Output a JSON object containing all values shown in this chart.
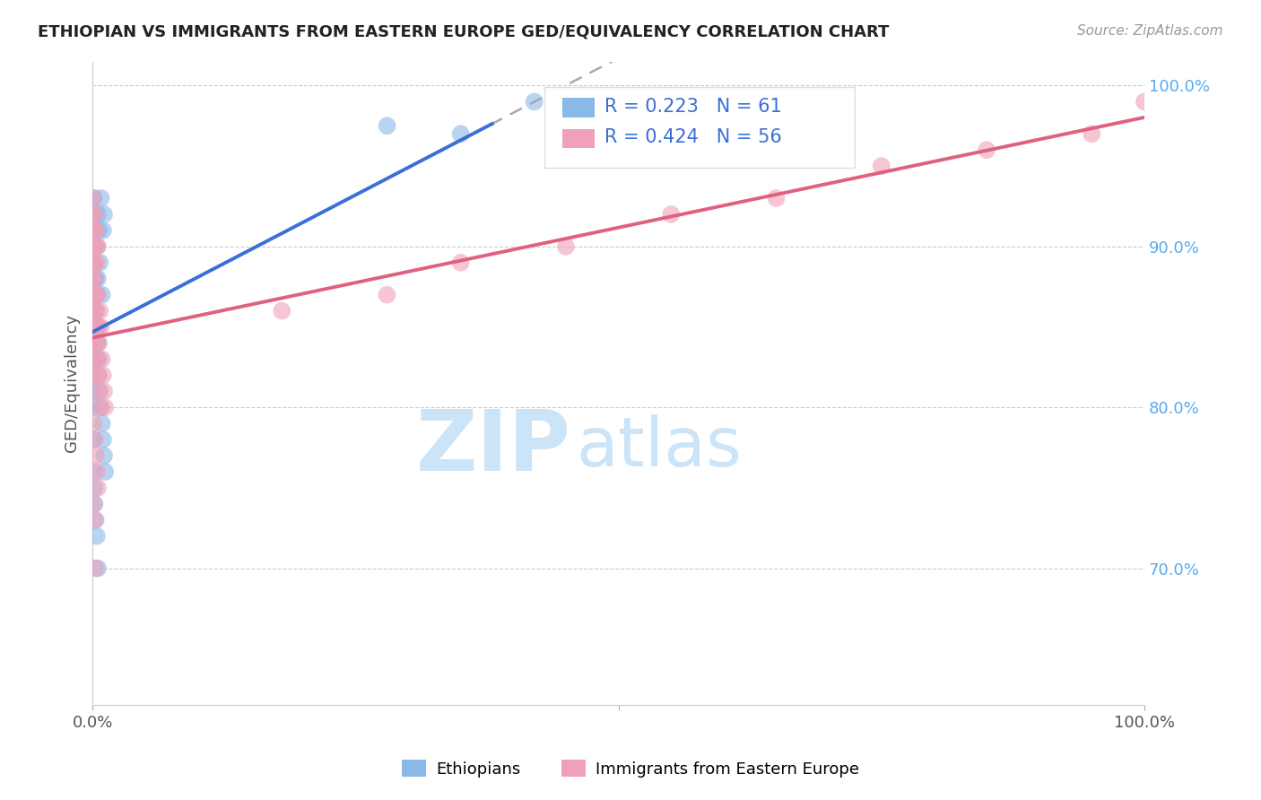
{
  "title": "ETHIOPIAN VS IMMIGRANTS FROM EASTERN EUROPE GED/EQUIVALENCY CORRELATION CHART",
  "source": "Source: ZipAtlas.com",
  "ylabel": "GED/Equivalency",
  "legend_blue_R": "R = 0.223",
  "legend_blue_N": "N = 61",
  "legend_pink_R": "R = 0.424",
  "legend_pink_N": "N = 56",
  "legend_blue_label": "Ethiopians",
  "legend_pink_label": "Immigrants from Eastern Europe",
  "blue_scatter_x": [
    0.001,
    0.001,
    0.001,
    0.001,
    0.001,
    0.001,
    0.001,
    0.001,
    0.001,
    0.001,
    0.002,
    0.002,
    0.002,
    0.002,
    0.002,
    0.002,
    0.002,
    0.003,
    0.003,
    0.003,
    0.004,
    0.004,
    0.005,
    0.005,
    0.006,
    0.007,
    0.008,
    0.009,
    0.01,
    0.011,
    0.001,
    0.001,
    0.001,
    0.001,
    0.002,
    0.002,
    0.003,
    0.003,
    0.004,
    0.004,
    0.005,
    0.005,
    0.006,
    0.006,
    0.007,
    0.008,
    0.009,
    0.01,
    0.011,
    0.012,
    0.001,
    0.001,
    0.002,
    0.002,
    0.003,
    0.004,
    0.005,
    0.28,
    0.35,
    0.42,
    0.45
  ],
  "blue_scatter_y": [
    0.93,
    0.92,
    0.91,
    0.9,
    0.89,
    0.88,
    0.87,
    0.86,
    0.85,
    0.84,
    0.92,
    0.91,
    0.9,
    0.89,
    0.88,
    0.87,
    0.86,
    0.91,
    0.9,
    0.88,
    0.9,
    0.87,
    0.92,
    0.88,
    0.91,
    0.89,
    0.93,
    0.87,
    0.91,
    0.92,
    0.83,
    0.82,
    0.81,
    0.8,
    0.85,
    0.84,
    0.86,
    0.85,
    0.84,
    0.83,
    0.85,
    0.84,
    0.83,
    0.82,
    0.81,
    0.8,
    0.79,
    0.78,
    0.77,
    0.76,
    0.78,
    0.76,
    0.75,
    0.74,
    0.73,
    0.72,
    0.7,
    0.975,
    0.97,
    0.99,
    0.98
  ],
  "pink_scatter_x": [
    0.001,
    0.001,
    0.001,
    0.001,
    0.001,
    0.001,
    0.001,
    0.002,
    0.002,
    0.002,
    0.002,
    0.002,
    0.002,
    0.003,
    0.003,
    0.003,
    0.004,
    0.004,
    0.005,
    0.005,
    0.006,
    0.006,
    0.007,
    0.008,
    0.009,
    0.01,
    0.011,
    0.012,
    0.001,
    0.001,
    0.002,
    0.002,
    0.003,
    0.003,
    0.004,
    0.005,
    0.006,
    0.007,
    0.001,
    0.002,
    0.003,
    0.004,
    0.005,
    0.001,
    0.002,
    0.003,
    0.18,
    0.28,
    0.35,
    0.45,
    0.55,
    0.65,
    0.75,
    0.85,
    0.95,
    1.0
  ],
  "pink_scatter_y": [
    0.93,
    0.92,
    0.91,
    0.9,
    0.89,
    0.88,
    0.87,
    0.92,
    0.91,
    0.9,
    0.89,
    0.88,
    0.86,
    0.91,
    0.9,
    0.87,
    0.89,
    0.86,
    0.9,
    0.87,
    0.85,
    0.84,
    0.86,
    0.85,
    0.83,
    0.82,
    0.81,
    0.8,
    0.85,
    0.84,
    0.83,
    0.82,
    0.85,
    0.84,
    0.83,
    0.82,
    0.81,
    0.8,
    0.79,
    0.78,
    0.77,
    0.76,
    0.75,
    0.74,
    0.73,
    0.7,
    0.86,
    0.87,
    0.89,
    0.9,
    0.92,
    0.93,
    0.95,
    0.96,
    0.97,
    0.99
  ],
  "blue_color": "#8ab8e8",
  "pink_color": "#f0a0b8",
  "blue_line_color": "#3a6fd8",
  "pink_line_color": "#e06080",
  "background_color": "#ffffff",
  "title_color": "#222222",
  "axis_label_color": "#555555",
  "right_label_color": "#5aaaee",
  "watermark_zip": "ZIP",
  "watermark_atlas": "atlas",
  "watermark_color": "#cce4f8",
  "xmin": 0.0,
  "xmax": 1.0,
  "ymin": 0.615,
  "ymax": 1.015
}
